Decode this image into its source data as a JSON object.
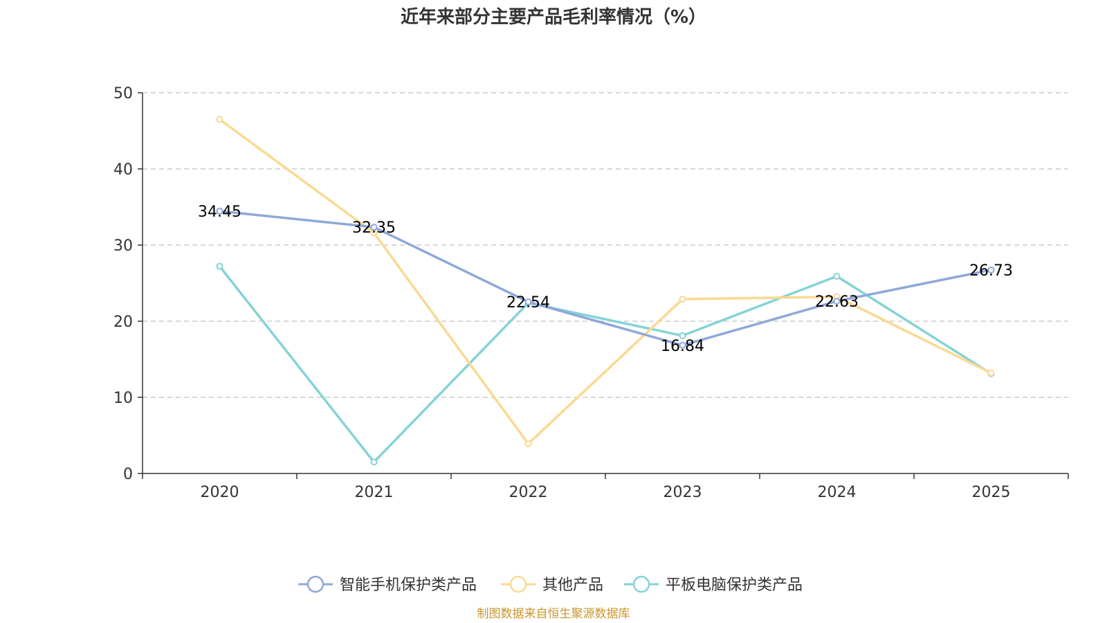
{
  "chart_data": {
    "type": "line",
    "title": "近年来部分主要产品毛利率情况（%）",
    "xlabel": "",
    "ylabel": "",
    "categories": [
      "2020",
      "2021",
      "2022",
      "2023",
      "2024",
      "2025"
    ],
    "ylim": [
      0,
      50
    ],
    "yticks": [
      0,
      10,
      20,
      30,
      40,
      50
    ],
    "grid": "horizontal-dashed",
    "legend_position": "bottom",
    "series": [
      {
        "name": "智能手机保护类产品",
        "color": "#8fa8d8",
        "values": [
          34.45,
          32.35,
          22.54,
          16.84,
          22.63,
          26.73
        ],
        "labels": [
          "34.45",
          "32.35",
          "22.54",
          "16.84",
          "22.63",
          "26.73"
        ]
      },
      {
        "name": "其他产品",
        "color": "#fad990",
        "values": [
          46.5,
          31.6,
          3.9,
          22.9,
          23.2,
          13.2
        ]
      },
      {
        "name": "平板电脑保护类产品",
        "color": "#84d3d6",
        "values": [
          27.2,
          1.5,
          22.4,
          18.1,
          25.9,
          13.1
        ]
      }
    ],
    "source": "制图数据来自恒生聚源数据库"
  }
}
